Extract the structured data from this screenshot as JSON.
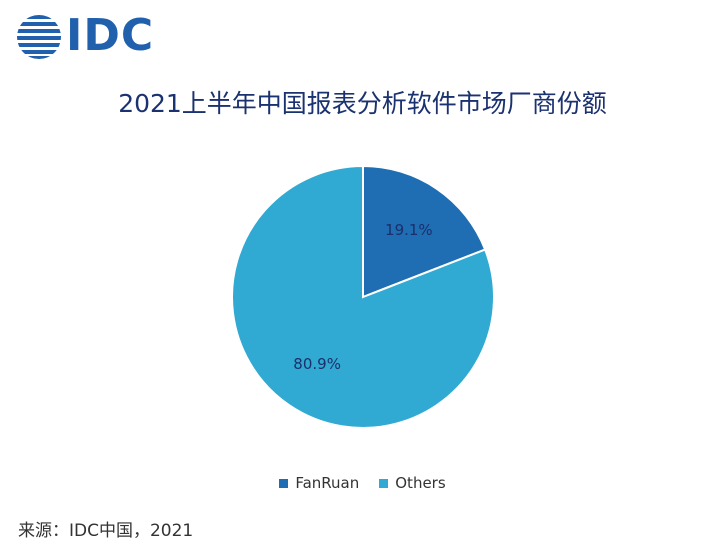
{
  "logo": {
    "text": "IDC"
  },
  "source": "来源：IDC中国，2021",
  "chart_data": {
    "type": "pie",
    "title": "2021上半年中国报表分析软件市场厂商份额",
    "categories": [
      "FanRuan",
      "Others"
    ],
    "values": [
      19.1,
      80.9
    ],
    "labels": [
      "19.1%",
      "80.9%"
    ],
    "colors": [
      "#1f6db2",
      "#31aad3"
    ],
    "legend": "bottom"
  }
}
